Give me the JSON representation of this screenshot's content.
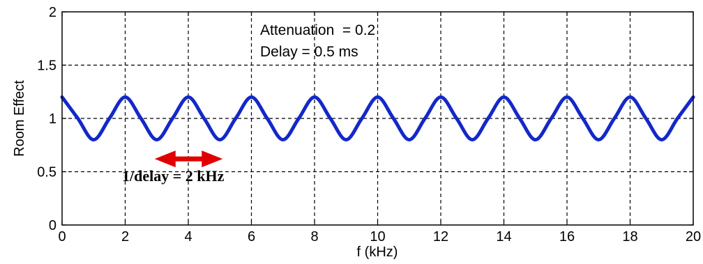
{
  "chart_data": {
    "type": "line",
    "title": "",
    "xlabel": "f (kHz)",
    "ylabel": "Room Effect",
    "xlim": [
      0,
      20
    ],
    "ylim": [
      0,
      2
    ],
    "grid": true,
    "x_ticks": [
      0,
      2,
      4,
      6,
      8,
      10,
      12,
      14,
      16,
      18,
      20
    ],
    "x_tick_labels": [
      "0",
      "2",
      "4",
      "6",
      "8",
      "10",
      "12",
      "14",
      "16",
      "18",
      "20"
    ],
    "y_ticks": [
      0,
      0.5,
      1,
      1.5,
      2
    ],
    "y_tick_labels": [
      "0",
      "0.5",
      "1",
      "1.5",
      "2"
    ],
    "series": [
      {
        "color": "#1428c8",
        "x": [
          0,
          0.5,
          1,
          1.5,
          2,
          2.5,
          3,
          3.5,
          4,
          4.5,
          5,
          5.5,
          6,
          6.5,
          7,
          7.5,
          8,
          8.5,
          9,
          9.5,
          10,
          10.5,
          11,
          11.5,
          12,
          12.5,
          13,
          13.5,
          14,
          14.5,
          15,
          15.5,
          16,
          16.5,
          17,
          17.5,
          18,
          18.5,
          19,
          19.5,
          20
        ],
        "y": [
          1.2,
          1.0,
          0.8,
          1.0,
          1.2,
          1.0,
          0.8,
          1.0,
          1.2,
          1.0,
          0.8,
          1.0,
          1.2,
          1.0,
          0.8,
          1.0,
          1.2,
          1.0,
          0.8,
          1.0,
          1.2,
          1.0,
          0.8,
          1.0,
          1.2,
          1.0,
          0.8,
          1.0,
          1.2,
          1.0,
          0.8,
          1.0,
          1.2,
          1.0,
          0.8,
          1.0,
          1.2,
          1.0,
          0.8,
          1.0,
          1.2
        ]
      }
    ],
    "annotations": [
      {
        "text": "Attenuation  = 0.2"
      },
      {
        "text": "Delay = 0.5 ms"
      },
      {
        "text": "1/delay = 2 kHz"
      }
    ],
    "arrow": {
      "x_start": 3,
      "x_end": 5,
      "y": 0.62,
      "color": "#e00000"
    }
  }
}
